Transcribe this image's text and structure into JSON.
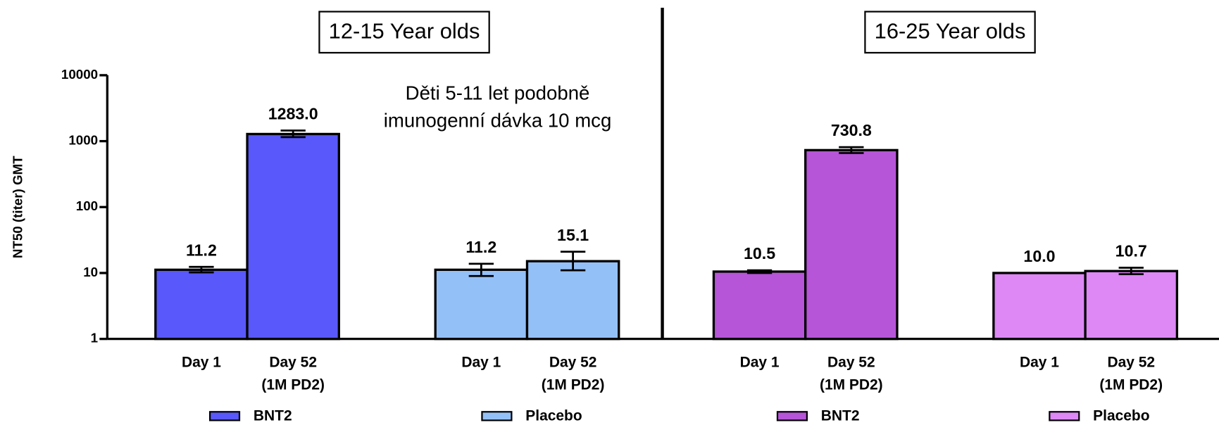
{
  "chart_data": {
    "type": "bar",
    "log_scale": true,
    "y_label": "NT50 (titer) GMT",
    "ylim": [
      1,
      10000
    ],
    "yticks": [
      1,
      10,
      100,
      1000,
      10000
    ],
    "annotation": [
      "Děti 5-11 let podobně",
      "imunogenní dávka 10 mcg"
    ],
    "annotation_color": "#ff0000",
    "panels": [
      {
        "title": "12-15 Year olds",
        "groups": [
          {
            "name": "BNT2",
            "color": "#5858fb",
            "categories": [
              [
                "Day 1"
              ],
              [
                "Day 52",
                "(1M PD2)"
              ]
            ],
            "values": [
              11.2,
              1283.0
            ],
            "value_labels": [
              "11.2",
              "1283.0"
            ],
            "error_low": [
              10.2,
              1150
            ],
            "error_high": [
              12.4,
              1450
            ]
          },
          {
            "name": "Placebo",
            "color": "#94c0f8",
            "categories": [
              [
                "Day 1"
              ],
              [
                "Day 52",
                "(1M PD2)"
              ]
            ],
            "values": [
              11.2,
              15.1
            ],
            "value_labels": [
              "11.2",
              "15.1"
            ],
            "error_low": [
              9.0,
              11.0
            ],
            "error_high": [
              13.8,
              21.0
            ]
          }
        ]
      },
      {
        "title": "16-25 Year olds",
        "groups": [
          {
            "name": "BNT2",
            "color": "#b655d8",
            "categories": [
              [
                "Day 1"
              ],
              [
                "Day 52",
                "(1M PD2)"
              ]
            ],
            "values": [
              10.5,
              730.8
            ],
            "value_labels": [
              "10.5",
              "730.8"
            ],
            "error_low": [
              10.0,
              660
            ],
            "error_high": [
              11.0,
              810
            ]
          },
          {
            "name": "Placebo",
            "color": "#dd88f5",
            "categories": [
              [
                "Day 1"
              ],
              [
                "Day 52",
                "(1M PD2)"
              ]
            ],
            "values": [
              10.0,
              10.7
            ],
            "value_labels": [
              "10.0",
              "10.7"
            ],
            "error_low": [
              10.0,
              9.6
            ],
            "error_high": [
              10.0,
              12.0
            ]
          }
        ]
      }
    ]
  }
}
